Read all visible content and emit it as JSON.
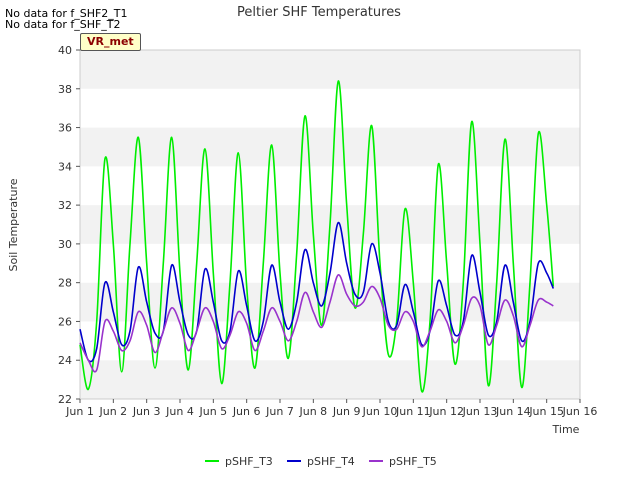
{
  "notices": [
    "No data for f_SHF2_T1",
    "No data for f_SHF_T2"
  ],
  "badge": "VR_met",
  "chart_data": {
    "type": "line",
    "title": "Peltier SHF Temperatures",
    "xlabel": "Time",
    "ylabel": "Soil Temperature",
    "xlim": [
      1,
      16
    ],
    "ylim": [
      22,
      40
    ],
    "x_ticks": [
      1,
      2,
      3,
      4,
      5,
      6,
      7,
      8,
      9,
      10,
      11,
      12,
      13,
      14,
      15,
      16
    ],
    "x_tick_labels": [
      "Jun 1",
      "Jun 2",
      "Jun 3",
      "Jun 4",
      "Jun 5",
      "Jun 6",
      "Jun 7",
      "Jun 8",
      "Jun 9",
      "Jun 10",
      "Jun 11",
      "Jun 12",
      "Jun 13",
      "Jun 14",
      "Jun 15",
      "Jun 16"
    ],
    "y_ticks": [
      22,
      24,
      26,
      28,
      30,
      32,
      34,
      36,
      38,
      40
    ],
    "grid": "horizontal-bands",
    "legend_position": "bottom",
    "x": [
      1.0,
      1.25,
      1.5,
      1.75,
      2.0,
      2.25,
      2.5,
      2.75,
      3.0,
      3.25,
      3.5,
      3.75,
      4.0,
      4.25,
      4.5,
      4.75,
      5.0,
      5.25,
      5.5,
      5.75,
      6.0,
      6.25,
      6.5,
      6.75,
      7.0,
      7.25,
      7.5,
      7.75,
      8.0,
      8.25,
      8.5,
      8.75,
      9.0,
      9.25,
      9.5,
      9.75,
      10.0,
      10.25,
      10.5,
      10.75,
      11.0,
      11.25,
      11.5,
      11.75,
      12.0,
      12.25,
      12.5,
      12.75,
      13.0,
      13.25,
      13.5,
      13.75,
      14.0,
      14.25,
      14.5,
      14.75,
      15.0,
      15.2
    ],
    "series": [
      {
        "name": "pSHF_T3",
        "color": "#00ee00",
        "values": [
          24.8,
          22.5,
          26.0,
          34.4,
          30.0,
          23.4,
          30.0,
          35.5,
          29.0,
          23.6,
          29.0,
          35.5,
          28.5,
          23.5,
          29.0,
          34.9,
          28.5,
          22.8,
          28.0,
          34.7,
          27.8,
          23.6,
          29.0,
          35.1,
          28.5,
          24.1,
          29.5,
          36.6,
          30.5,
          25.8,
          31.0,
          38.4,
          32.0,
          26.7,
          30.5,
          36.1,
          29.0,
          24.3,
          26.0,
          31.8,
          28.0,
          22.4,
          26.0,
          34.1,
          29.0,
          23.8,
          28.0,
          36.3,
          30.0,
          22.7,
          28.0,
          35.4,
          29.0,
          22.6,
          28.0,
          35.7,
          32.0,
          27.8
        ]
      },
      {
        "name": "pSHF_T4",
        "color": "#0000cc",
        "values": [
          25.6,
          24.0,
          24.6,
          28.0,
          26.5,
          24.8,
          25.5,
          28.8,
          27.0,
          25.4,
          25.5,
          28.9,
          27.0,
          25.3,
          25.5,
          28.7,
          27.0,
          25.0,
          25.5,
          28.6,
          26.8,
          25.0,
          26.0,
          28.9,
          27.0,
          25.6,
          27.0,
          29.7,
          28.0,
          26.8,
          28.5,
          31.1,
          29.0,
          27.4,
          27.5,
          30.0,
          28.5,
          26.0,
          25.8,
          27.9,
          26.5,
          24.8,
          25.5,
          28.1,
          26.8,
          25.3,
          26.0,
          29.4,
          27.5,
          25.3,
          26.0,
          28.9,
          27.0,
          25.0,
          26.0,
          29.0,
          28.5,
          27.7
        ]
      },
      {
        "name": "pSHF_T5",
        "color": "#9933cc",
        "values": [
          24.9,
          24.0,
          23.5,
          26.0,
          25.5,
          24.5,
          25.0,
          26.5,
          25.8,
          24.4,
          25.5,
          26.7,
          25.9,
          24.5,
          25.5,
          26.7,
          26.0,
          24.6,
          25.3,
          26.5,
          25.9,
          24.5,
          25.5,
          26.7,
          26.0,
          25.0,
          26.0,
          27.5,
          26.5,
          25.7,
          27.0,
          28.4,
          27.4,
          26.8,
          27.0,
          27.8,
          27.2,
          25.8,
          25.6,
          26.5,
          26.0,
          24.7,
          25.5,
          26.6,
          26.0,
          24.9,
          25.8,
          27.2,
          26.8,
          24.8,
          25.8,
          27.1,
          26.3,
          24.7,
          25.8,
          27.1,
          27.0,
          26.8
        ]
      }
    ]
  }
}
